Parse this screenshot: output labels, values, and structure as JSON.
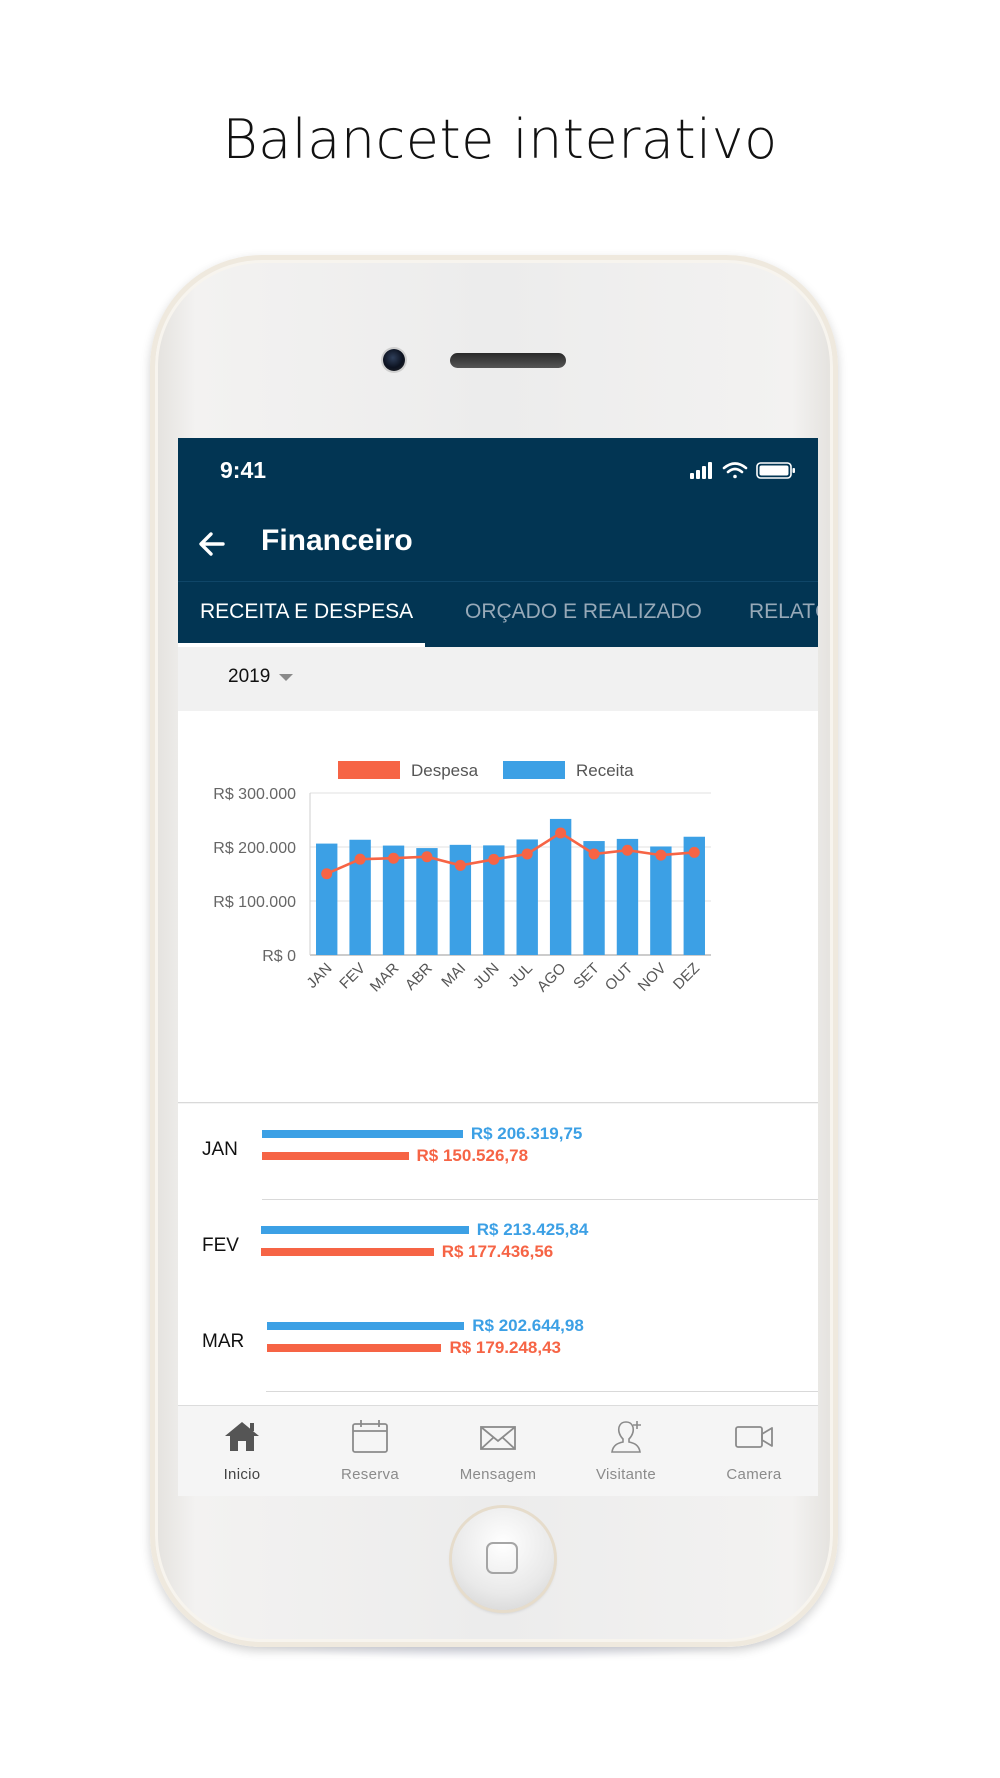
{
  "headline": "Balancete interativo",
  "status": {
    "time": "9:41"
  },
  "app": {
    "title": "Financeiro"
  },
  "tabs": [
    {
      "label": "RECEITA E DESPESA",
      "active": true
    },
    {
      "label": "ORÇADO E REALIZADO",
      "active": false
    },
    {
      "label": "RELATÓ",
      "active": false
    }
  ],
  "year": {
    "selected": "2019"
  },
  "chart_data": {
    "type": "bar",
    "categories": [
      "JAN",
      "FEV",
      "MAR",
      "ABR",
      "MAI",
      "JUN",
      "JUL",
      "AGO",
      "SET",
      "OUT",
      "NOV",
      "DEZ"
    ],
    "series": [
      {
        "name": "Receita",
        "kind": "bar",
        "color": "#3ca0e5",
        "values": [
          206319.75,
          213425.84,
          202644.98,
          198000,
          204000,
          203000,
          214000,
          252000,
          211000,
          215000,
          201000,
          219000
        ]
      },
      {
        "name": "Despesa",
        "kind": "line",
        "color": "#f66445",
        "values": [
          150526.78,
          177436.56,
          179248.43,
          182000,
          166000,
          177000,
          187000,
          226000,
          187000,
          194000,
          185000,
          190000
        ]
      }
    ],
    "yticks": [
      "R$ 0",
      "R$ 100.000",
      "R$ 200.000",
      "R$ 300.000"
    ],
    "ylim": [
      0,
      300000
    ],
    "legend": [
      "Despesa",
      "Receita"
    ],
    "legend_position": "top",
    "grid": true
  },
  "list": {
    "max_value": 300000,
    "rows": [
      {
        "month": "JAN",
        "receita": 206319.75,
        "receita_text": "R$ 206.319,75",
        "despesa": 150526.78,
        "despesa_text": "R$ 150.526,78"
      },
      {
        "month": "FEV",
        "receita": 213425.84,
        "receita_text": "R$ 213.425,84",
        "despesa": 177436.56,
        "despesa_text": "R$ 177.436,56"
      },
      {
        "month": "MAR",
        "receita": 202644.98,
        "receita_text": "R$ 202.644,98",
        "despesa": 179248.43,
        "despesa_text": "R$ 179.248,43"
      }
    ]
  },
  "bottom_nav": [
    {
      "label": "Inicio",
      "icon": "home-icon",
      "active": true
    },
    {
      "label": "Reserva",
      "icon": "calendar-icon",
      "active": false
    },
    {
      "label": "Mensagem",
      "icon": "mail-icon",
      "active": false
    },
    {
      "label": "Visitante",
      "icon": "add-person-icon",
      "active": false
    },
    {
      "label": "Camera",
      "icon": "video-camera-icon",
      "active": false
    }
  ],
  "colors": {
    "appbar": "#023553",
    "receita": "#3ca0e5",
    "despesa": "#f66445"
  }
}
